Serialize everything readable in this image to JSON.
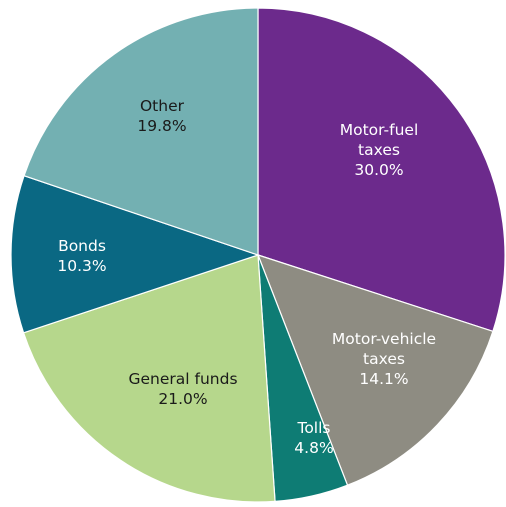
{
  "chart_data": {
    "type": "pie",
    "slices": [
      {
        "label": [
          "Motor-fuel",
          "taxes"
        ],
        "value": 30.0,
        "value_text": "30.0%",
        "color": "#6c2a8c",
        "text_color": "#ffffff"
      },
      {
        "label": [
          "Motor-vehicle",
          "taxes"
        ],
        "value": 14.1,
        "value_text": "14.1%",
        "color": "#8e8c82",
        "text_color": "#ffffff"
      },
      {
        "label": [
          "Tolls"
        ],
        "value": 4.8,
        "value_text": "4.8%",
        "color": "#0e7c74",
        "text_color": "#ffffff"
      },
      {
        "label": [
          "General funds"
        ],
        "value": 21.0,
        "value_text": "21.0%",
        "color": "#b6d78c",
        "text_color": "#1a1a1a"
      },
      {
        "label": [
          "Bonds"
        ],
        "value": 10.3,
        "value_text": "10.3%",
        "color": "#0a6883",
        "text_color": "#ffffff"
      },
      {
        "label": [
          "Other"
        ],
        "value": 19.8,
        "value_text": "19.8%",
        "color": "#73b0b2",
        "text_color": "#1a1a1a"
      }
    ]
  }
}
